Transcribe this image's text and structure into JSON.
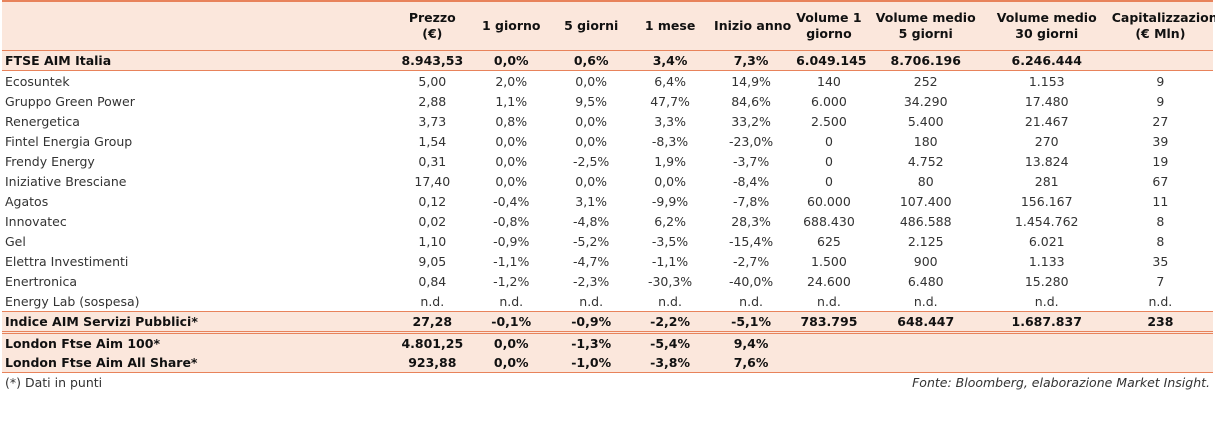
{
  "table": {
    "headers": [
      {
        "l1": "",
        "l2": ""
      },
      {
        "l1": "Prezzo",
        "l2": "(€)"
      },
      {
        "l1": "1 giorno",
        "l2": ""
      },
      {
        "l1": "5 giorni",
        "l2": ""
      },
      {
        "l1": "1 mese",
        "l2": ""
      },
      {
        "l1": "Inizio anno",
        "l2": ""
      },
      {
        "l1": "Volume 1",
        "l2": "giorno"
      },
      {
        "l1": "Volume medio",
        "l2": "5 giorni"
      },
      {
        "l1": "Volume medio",
        "l2": "30 giorni"
      },
      {
        "l1": "Capitalizzazione",
        "l2": "(€ Mln)"
      }
    ],
    "index_row": [
      "FTSE AIM Italia",
      "8.943,53",
      "0,0%",
      "0,6%",
      "3,4%",
      "7,3%",
      "6.049.145",
      "8.706.196",
      "6.246.444",
      ""
    ],
    "rows": [
      [
        "Ecosuntek",
        "5,00",
        "2,0%",
        "0,0%",
        "6,4%",
        "14,9%",
        "140",
        "252",
        "1.153",
        "9"
      ],
      [
        "Gruppo Green Power",
        "2,88",
        "1,1%",
        "9,5%",
        "47,7%",
        "84,6%",
        "6.000",
        "34.290",
        "17.480",
        "9"
      ],
      [
        "Renergetica",
        "3,73",
        "0,8%",
        "0,0%",
        "3,3%",
        "33,2%",
        "2.500",
        "5.400",
        "21.467",
        "27"
      ],
      [
        "Fintel Energia Group",
        "1,54",
        "0,0%",
        "0,0%",
        "-8,3%",
        "-23,0%",
        "0",
        "180",
        "270",
        "39"
      ],
      [
        "Frendy Energy",
        "0,31",
        "0,0%",
        "-2,5%",
        "1,9%",
        "-3,7%",
        "0",
        "4.752",
        "13.824",
        "19"
      ],
      [
        "Iniziative Bresciane",
        "17,40",
        "0,0%",
        "0,0%",
        "0,0%",
        "-8,4%",
        "0",
        "80",
        "281",
        "67"
      ],
      [
        "Agatos",
        "0,12",
        "-0,4%",
        "3,1%",
        "-9,9%",
        "-7,8%",
        "60.000",
        "107.400",
        "156.167",
        "11"
      ],
      [
        "Innovatec",
        "0,02",
        "-0,8%",
        "-4,8%",
        "6,2%",
        "28,3%",
        "688.430",
        "486.588",
        "1.454.762",
        "8"
      ],
      [
        "Gel",
        "1,10",
        "-0,9%",
        "-5,2%",
        "-3,5%",
        "-15,4%",
        "625",
        "2.125",
        "6.021",
        "8"
      ],
      [
        "Elettra Investimenti",
        "9,05",
        "-1,1%",
        "-4,7%",
        "-1,1%",
        "-2,7%",
        "1.500",
        "900",
        "1.133",
        "35"
      ],
      [
        "Enertronica",
        "0,84",
        "-1,2%",
        "-2,3%",
        "-30,3%",
        "-40,0%",
        "24.600",
        "6.480",
        "15.280",
        "7"
      ],
      [
        "Energy Lab (sospesa)",
        "n.d.",
        "n.d.",
        "n.d.",
        "n.d.",
        "n.d.",
        "n.d.",
        "n.d.",
        "n.d.",
        "n.d."
      ]
    ],
    "sector_row": [
      "Indice AIM Servizi Pubblici*",
      "27,28",
      "-0,1%",
      "-0,9%",
      "-2,2%",
      "-5,1%",
      "783.795",
      "648.447",
      "1.687.837",
      "238"
    ],
    "london_rows": [
      [
        "London Ftse Aim 100*",
        "4.801,25",
        "0,0%",
        "-1,3%",
        "-5,4%",
        "9,4%",
        "",
        "",
        "",
        ""
      ],
      [
        "London Ftse Aim All Share*",
        "923,88",
        "0,0%",
        "-1,0%",
        "-3,8%",
        "7,6%",
        "",
        "",
        "",
        ""
      ]
    ]
  },
  "footer": {
    "note": "(*) Dati in punti",
    "source": "Fonte: Bloomberg, elaborazione Market Insight."
  },
  "colors": {
    "highlight": "#fbe7dc",
    "rule": "#e8835b"
  }
}
